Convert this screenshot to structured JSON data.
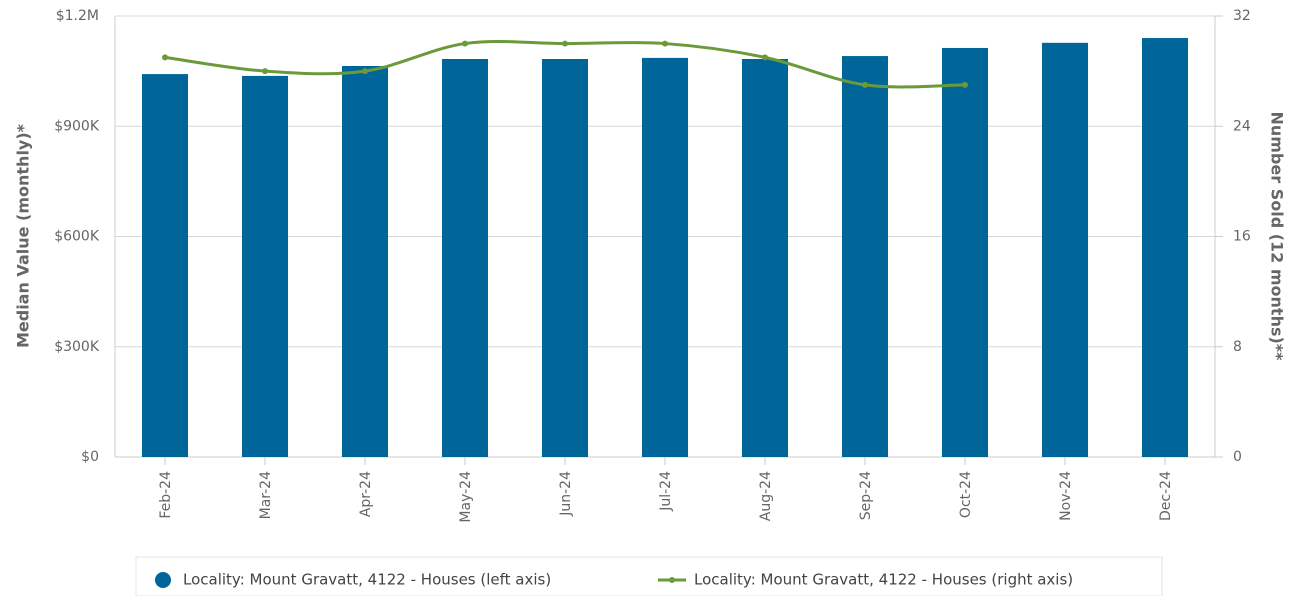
{
  "chart_data": {
    "type": "bar_line",
    "categories": [
      "Feb-24",
      "Mar-24",
      "Apr-24",
      "May-24",
      "Jun-24",
      "Jul-24",
      "Aug-24",
      "Sep-24",
      "Oct-24",
      "Nov-24",
      "Dec-24"
    ],
    "series": [
      {
        "name": "Locality: Mount Gravatt, 4122 - Houses (left axis)",
        "color": "#006699",
        "type": "bar",
        "values": [
          1042000,
          1037000,
          1064000,
          1083000,
          1083000,
          1086000,
          1083000,
          1091000,
          1113000,
          1127000,
          1140000
        ]
      },
      {
        "name": "Locality: Mount Gravatt, 4122 - Houses (right axis)",
        "color": "#6a9a3a",
        "type": "line",
        "axis": "y2",
        "values": [
          29,
          28,
          28,
          30,
          30,
          30,
          29,
          27,
          27,
          null,
          null
        ]
      }
    ],
    "ylabel": "Median Value (monthly)*",
    "y2label": "Number Sold (12 months)**",
    "ylim": [
      0,
      1200000
    ],
    "yticks": [
      {
        "value": 0,
        "label": "$0"
      },
      {
        "value": 300000,
        "label": "$300K"
      },
      {
        "value": 600000,
        "label": "$600K"
      },
      {
        "value": 900000,
        "label": "$900K"
      },
      {
        "value": 1200000,
        "label": "$1.2M"
      }
    ],
    "y2lim": [
      0,
      32
    ],
    "y2ticks": [
      0,
      8,
      16,
      24,
      32
    ],
    "grid": true,
    "legend": "bottom"
  }
}
